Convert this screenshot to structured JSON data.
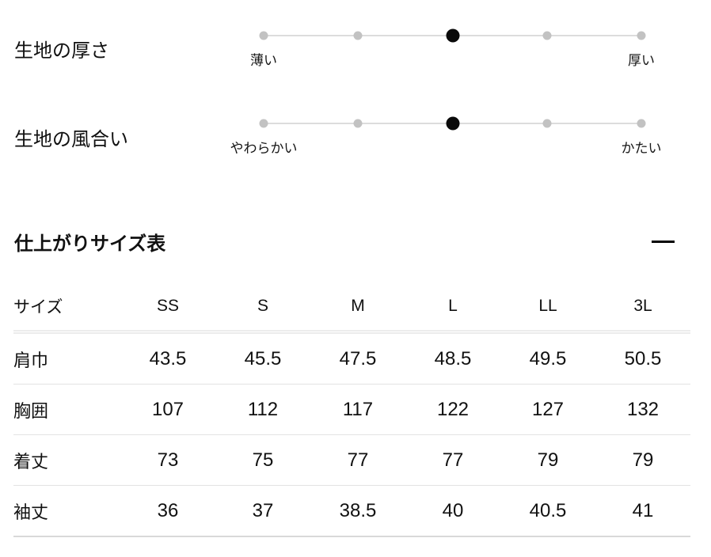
{
  "sliders": [
    {
      "title": "生地の厚さ",
      "left_label": "薄い",
      "right_label": "厚い",
      "steps": 5,
      "active_step": 3
    },
    {
      "title": "生地の風合い",
      "left_label": "やわらかい",
      "right_label": "かたい",
      "steps": 5,
      "active_step": 3
    }
  ],
  "size_section": {
    "title": "仕上がりサイズ表",
    "collapse_icon": "minus-icon",
    "table": {
      "header": [
        "サイズ",
        "SS",
        "S",
        "M",
        "L",
        "LL",
        "3L"
      ],
      "rows": [
        {
          "label": "肩巾",
          "values": [
            "43.5",
            "45.5",
            "47.5",
            "48.5",
            "49.5",
            "50.5"
          ]
        },
        {
          "label": "胸囲",
          "values": [
            "107",
            "112",
            "117",
            "122",
            "127",
            "132"
          ]
        },
        {
          "label": "着丈",
          "values": [
            "73",
            "75",
            "77",
            "77",
            "79",
            "79"
          ]
        },
        {
          "label": "袖丈",
          "values": [
            "36",
            "37",
            "38.5",
            "40",
            "40.5",
            "41"
          ]
        }
      ]
    }
  },
  "colors": {
    "background": "#ffffff",
    "text": "#111111",
    "active_dot": "#0a0a0a",
    "inactive_dot": "#c2c2c2",
    "track": "#dcdcdc",
    "row_divider": "#e3e3e3",
    "table_bottom_border": "#d9d9d9"
  }
}
